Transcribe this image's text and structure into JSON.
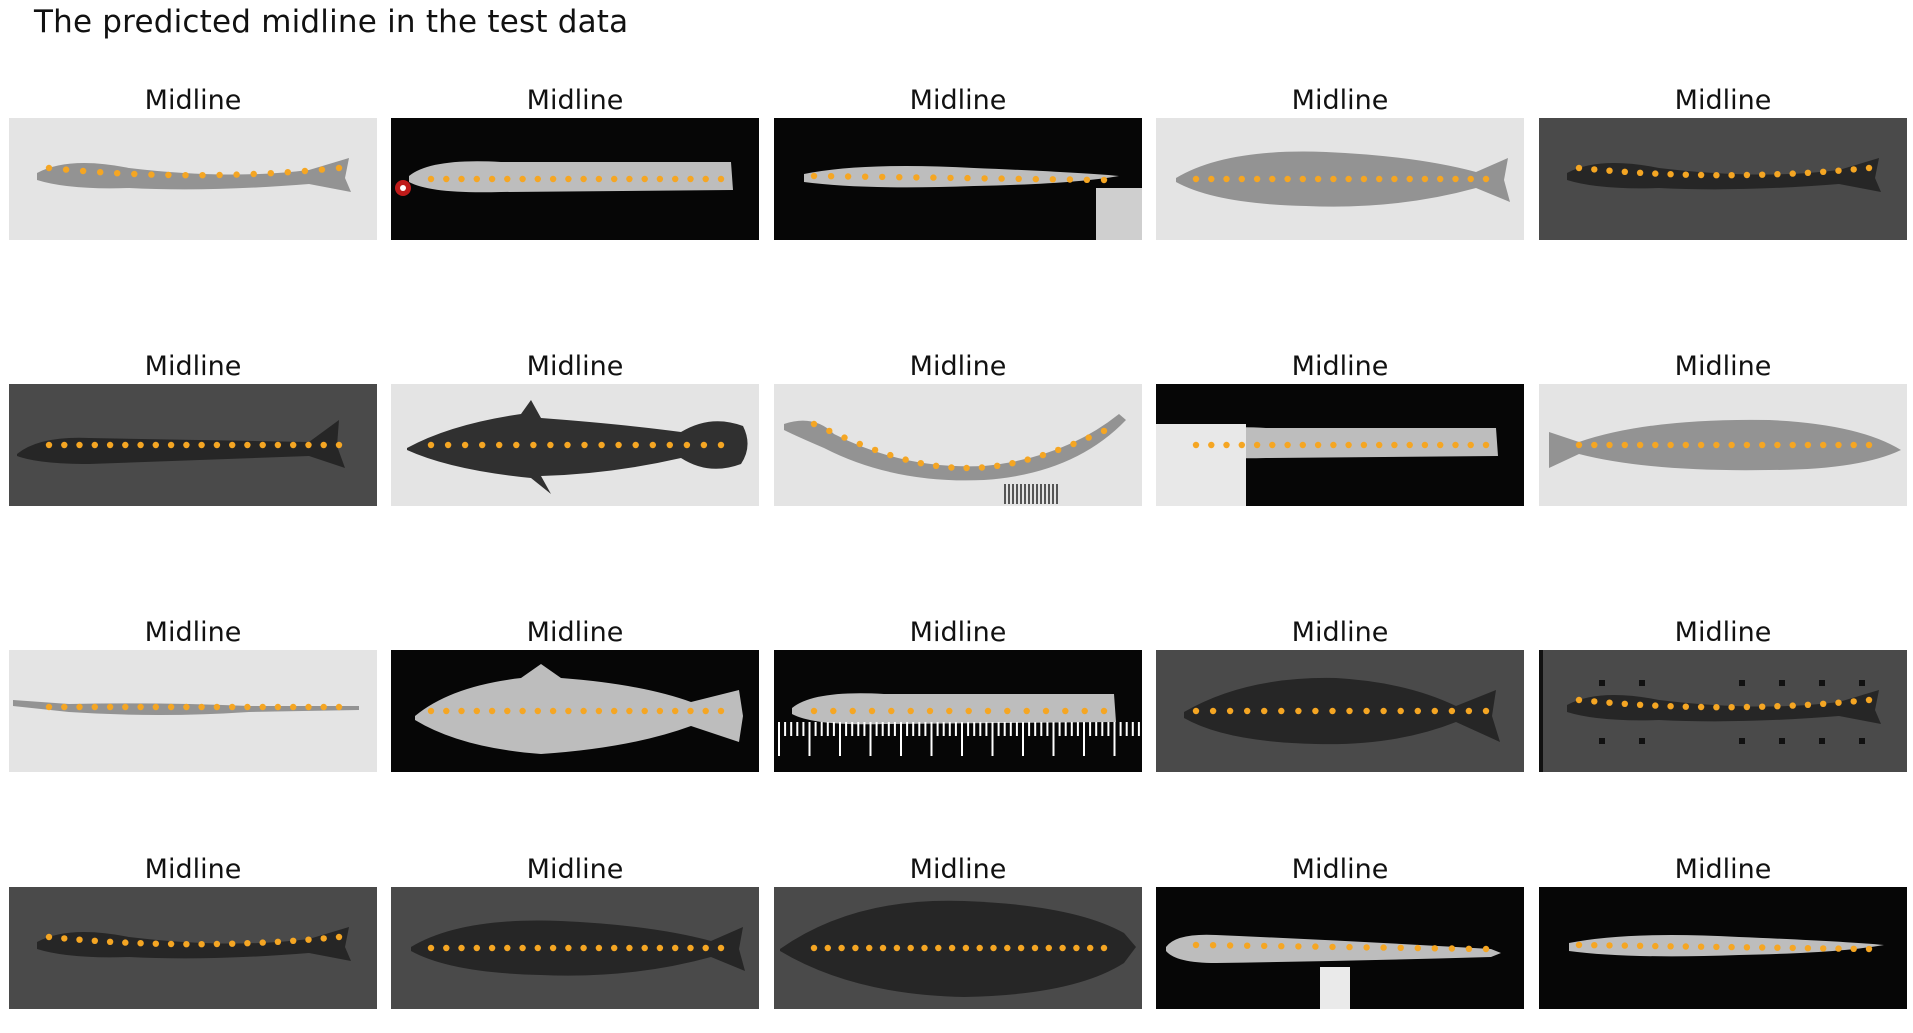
{
  "title": "The predicted midline in the test data",
  "panel_label": "Midline",
  "marker_color": "#F5A623",
  "panels": [
    {
      "bg": "light",
      "fish": "slender",
      "dots": 18,
      "extras": []
    },
    {
      "bg": "dark",
      "fish": "slender-light",
      "dots": 20,
      "extras": [
        "red-marker"
      ]
    },
    {
      "bg": "dark",
      "fish": "eel-light",
      "dots": 18,
      "extras": [
        "corner-patch"
      ]
    },
    {
      "bg": "light",
      "fish": "deep",
      "dots": 20,
      "extras": []
    },
    {
      "bg": "gray",
      "fish": "slender",
      "dots": 20,
      "extras": []
    },
    {
      "bg": "gray",
      "fish": "catfish",
      "dots": 20,
      "extras": []
    },
    {
      "bg": "light",
      "fish": "filefish",
      "dots": 18,
      "extras": []
    },
    {
      "bg": "light",
      "fish": "curved",
      "dots": 20,
      "extras": [
        "scale-bar"
      ]
    },
    {
      "bg": "dark",
      "fish": "slender-light",
      "dots": 20,
      "extras": [
        "left-patch"
      ]
    },
    {
      "bg": "light",
      "fish": "carp",
      "dots": 20,
      "extras": []
    },
    {
      "bg": "light",
      "fish": "needle",
      "dots": 20,
      "extras": []
    },
    {
      "bg": "dark",
      "fish": "spiny",
      "dots": 20,
      "extras": []
    },
    {
      "bg": "dark",
      "fish": "slender-light",
      "dots": 16,
      "extras": [
        "ruler"
      ]
    },
    {
      "bg": "gray",
      "fish": "flat",
      "dots": 18,
      "extras": []
    },
    {
      "bg": "gray",
      "fish": "slender",
      "dots": 20,
      "extras": [
        "ticks"
      ]
    },
    {
      "bg": "gray",
      "fish": "slender",
      "dots": 20,
      "extras": []
    },
    {
      "bg": "gray",
      "fish": "deep",
      "dots": 20,
      "extras": []
    },
    {
      "bg": "gray",
      "fish": "flounder",
      "dots": 22,
      "extras": []
    },
    {
      "bg": "dark",
      "fish": "tadpole",
      "dots": 18,
      "extras": [
        "post"
      ]
    },
    {
      "bg": "dark",
      "fish": "eel-light",
      "dots": 20,
      "extras": []
    }
  ]
}
